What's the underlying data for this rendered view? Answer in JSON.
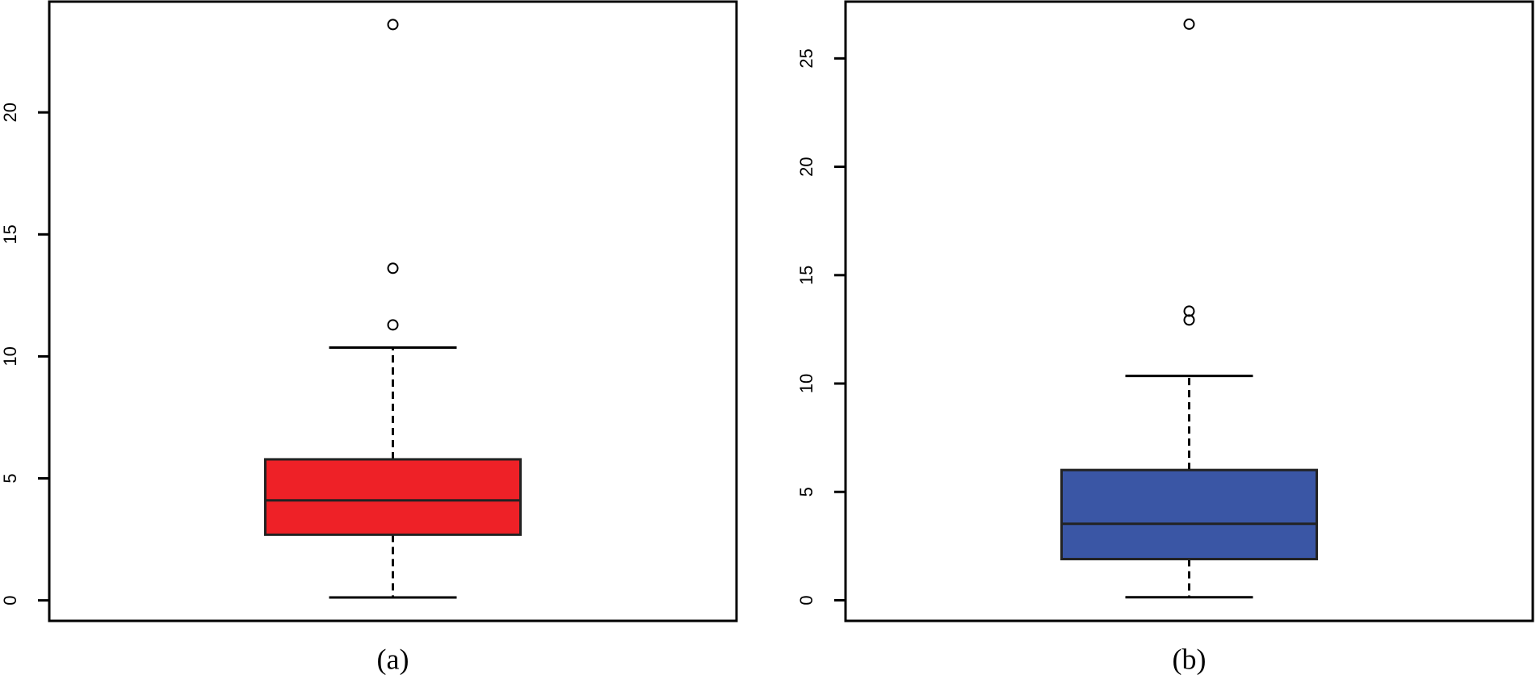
{
  "chart_data": [
    {
      "type": "boxplot",
      "caption": "(a)",
      "color": "#ee2127",
      "ylim": [
        -0.84,
        24.54
      ],
      "yticks": [
        0,
        5,
        10,
        15,
        20
      ],
      "whisker_low": 0.12,
      "q1": 2.69,
      "median": 4.1,
      "q3": 5.78,
      "whisker_high": 10.36,
      "outliers": [
        11.29,
        13.61,
        23.6
      ]
    },
    {
      "type": "boxplot",
      "caption": "(b)",
      "color": "#3a56a5",
      "ylim": [
        -0.95,
        27.62
      ],
      "yticks": [
        0,
        5,
        10,
        15,
        20,
        25
      ],
      "whisker_low": 0.14,
      "q1": 1.9,
      "median": 3.53,
      "q3": 6.01,
      "whisker_high": 10.35,
      "outliers": [
        12.93,
        13.34,
        26.58
      ]
    }
  ]
}
